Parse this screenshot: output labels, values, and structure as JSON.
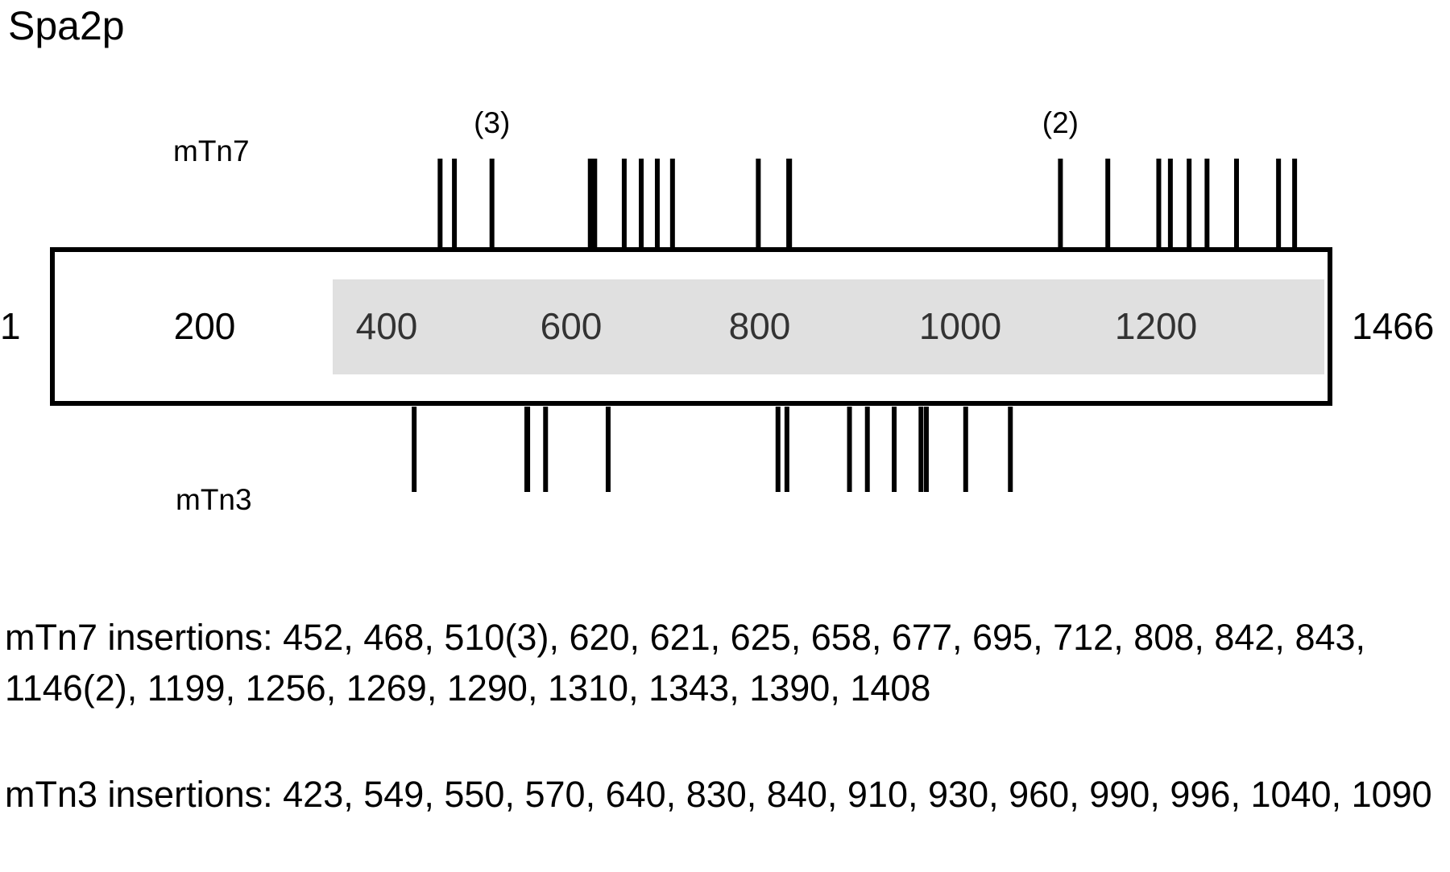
{
  "title": "Spa2p",
  "protein": {
    "start": "1",
    "end": "1466",
    "scale_labels": [
      "200",
      "400",
      "600",
      "800",
      "1000",
      "1200"
    ]
  },
  "mtn7": {
    "label": "mTn7",
    "prefix": "mTn7 insertions:",
    "insertions": [
      452,
      468,
      {
        "value": 510,
        "label": "510(3)",
        "count": "(3)"
      },
      620,
      621,
      625,
      658,
      677,
      695,
      712,
      808,
      842,
      843,
      {
        "value": 1146,
        "label": "1146(2)",
        "count": "(2)"
      },
      1199,
      1256,
      1269,
      1290,
      1310,
      1343,
      1390,
      1408
    ]
  },
  "mtn3": {
    "label": "mTn3",
    "prefix": "mTn3 insertions:",
    "insertions": [
      423,
      549,
      550,
      570,
      640,
      830,
      840,
      910,
      930,
      960,
      990,
      996,
      1040,
      1090
    ]
  }
}
